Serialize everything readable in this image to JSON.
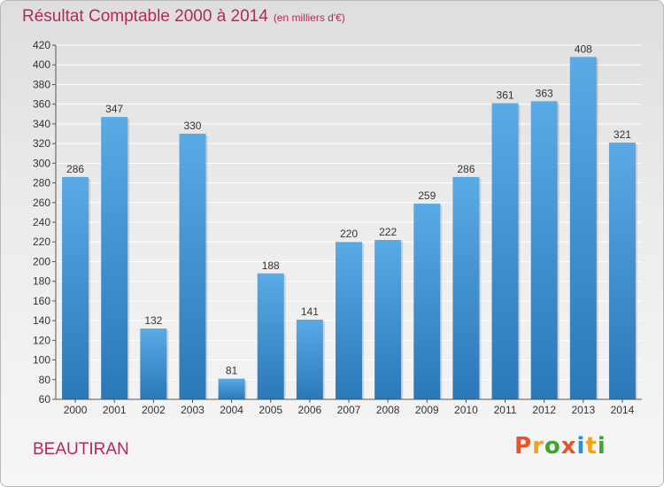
{
  "header": {
    "title": "Résultat Comptable 2000 à 2014",
    "subtitle": "(en milliers d'€)"
  },
  "footer": {
    "commune": "BEAUTIRAN",
    "logo_text": "Proxiti"
  },
  "colors": {
    "title": "#b5285c",
    "bar_top": "#5aaae6",
    "bar_bottom": "#2a78b8",
    "logo": [
      "#e8542a",
      "#f3a21b",
      "#3fa535",
      "#e8542a",
      "#2c8fd4",
      "#f3a21b",
      "#3fa535"
    ]
  },
  "chart_data": {
    "type": "bar",
    "categories": [
      "2000",
      "2001",
      "2002",
      "2003",
      "2004",
      "2005",
      "2006",
      "2007",
      "2008",
      "2009",
      "2010",
      "2011",
      "2012",
      "2013",
      "2014"
    ],
    "values": [
      286,
      347,
      132,
      330,
      81,
      188,
      141,
      220,
      222,
      259,
      286,
      361,
      363,
      408,
      321
    ],
    "ylim": [
      60,
      420
    ],
    "yticks": [
      60,
      80,
      100,
      120,
      140,
      160,
      180,
      200,
      220,
      240,
      260,
      280,
      300,
      320,
      340,
      360,
      380,
      400,
      420
    ],
    "grid": true,
    "data_labels": true
  }
}
